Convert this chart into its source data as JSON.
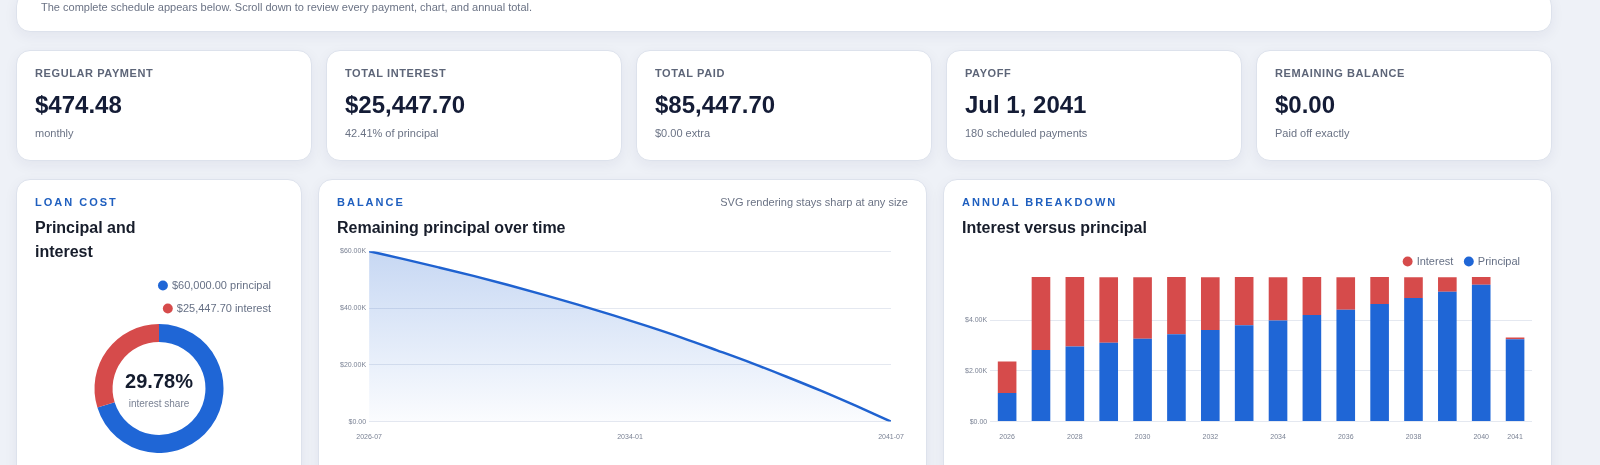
{
  "chart_data": [
    {
      "type": "other",
      "annotations": [
        "The complete schedule appears below. Scroll down to review every payment, chart, and annual total."
      ]
    },
    {
      "type": "other",
      "title": "REGULAR PAYMENT",
      "annotations": [
        "$474.48",
        "monthly"
      ]
    },
    {
      "type": "other",
      "title": "TOTAL INTEREST",
      "annotations": [
        "$25,447.70",
        "42.41% of principal"
      ]
    },
    {
      "type": "other",
      "title": "TOTAL PAID",
      "annotations": [
        "$85,447.70",
        "$0.00 extra"
      ]
    },
    {
      "type": "other",
      "title": "PAYOFF",
      "annotations": [
        "Jul 1, 2041",
        "180 scheduled payments"
      ]
    },
    {
      "type": "other",
      "title": "REMAINING BALANCE",
      "annotations": [
        "$0.00",
        "Paid off exactly"
      ]
    },
    {
      "type": "donut",
      "subtitle": "LOAN COST",
      "title": "Principal and interest",
      "categories": [
        "$60,000.00 principal",
        "$25,447.70 interest"
      ],
      "values": [
        60000,
        25447.7
      ],
      "colors": [
        "#1f66d6",
        "#d64b4b"
      ],
      "legend": "top right",
      "annotations": [
        "29.78%",
        "interest share"
      ]
    },
    {
      "type": "area",
      "subtitle": "BALANCE",
      "title": "Remaining principal over time",
      "annotations": [
        "SVG rendering stays sharp at any size"
      ],
      "x": [
        "2026-07",
        "2027-07",
        "2028-07",
        "2029-07",
        "2030-07",
        "2031-07",
        "2032-07",
        "2033-07",
        "2034-07",
        "2035-07",
        "2036-07",
        "2037-07",
        "2038-07",
        "2039-07",
        "2040-07",
        "2041-07"
      ],
      "series": [
        {
          "color": "#1f62d0",
          "values": [
            60000,
            57200,
            54300,
            51300,
            48100,
            44700,
            41200,
            37500,
            33600,
            29500,
            25100,
            20600,
            15800,
            10800,
            5500,
            0
          ]
        }
      ],
      "xlim": [
        "2026-07",
        "2041-07"
      ],
      "xticks": [
        "2026-07",
        "2034-01",
        "2041-07"
      ],
      "ylim": [
        0,
        60000
      ],
      "yticks": [
        {
          "value": 0,
          "label": "$0.00"
        },
        {
          "value": 20000,
          "label": "$20.00K"
        },
        {
          "value": 40000,
          "label": "$40.00K"
        },
        {
          "value": 60000,
          "label": "$60.00K"
        }
      ],
      "grid": "y"
    },
    {
      "type": "bar",
      "subtitle": "ANNUAL BREAKDOWN",
      "title": "Interest versus principal",
      "stacked": true,
      "categories": [
        "2026",
        null,
        "2028",
        null,
        "2030",
        null,
        "2032",
        null,
        "2034",
        null,
        "2036",
        null,
        "2038",
        null,
        "2040",
        "2041"
      ],
      "series": [
        {
          "name": "Principal",
          "color": "#1f66d6",
          "values": [
            1130,
            2820,
            2960,
            3110,
            3270,
            3440,
            3610,
            3800,
            3990,
            4200,
            4410,
            4640,
            4870,
            5120,
            5390,
            3250
          ]
        },
        {
          "name": "Interest",
          "color": "#d64b4b",
          "values": [
            1240,
            2880,
            2740,
            2580,
            2420,
            2260,
            2080,
            1900,
            1700,
            1500,
            1280,
            1060,
            820,
            570,
            310,
            70
          ]
        }
      ],
      "ylim": [
        0,
        5700
      ],
      "yticks": [
        {
          "value": 0,
          "label": "$0.00"
        },
        {
          "value": 2000,
          "label": "$2.00K"
        },
        {
          "value": 4000,
          "label": "$4.00K"
        }
      ],
      "grid": "y",
      "legend": "top right"
    }
  ]
}
